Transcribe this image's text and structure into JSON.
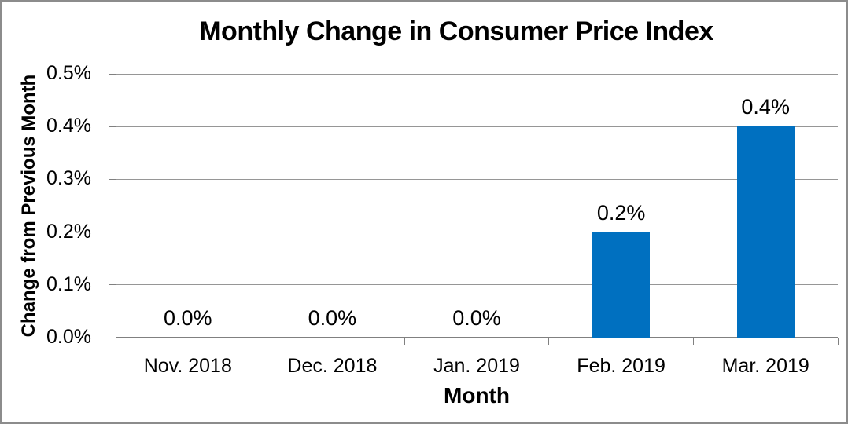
{
  "chart_data": {
    "type": "bar",
    "title": "Monthly Change in Consumer Price Index",
    "xlabel": "Month",
    "ylabel": "Change from Previous Month",
    "categories": [
      "Nov. 2018",
      "Dec. 2018",
      "Jan. 2019",
      "Feb. 2019",
      "Mar. 2019"
    ],
    "values": [
      0.0,
      0.0,
      0.0,
      0.2,
      0.4
    ],
    "data_labels": [
      "0.0%",
      "0.0%",
      "0.0%",
      "0.2%",
      "0.4%"
    ],
    "y_tick_labels": [
      "0.0%",
      "0.1%",
      "0.2%",
      "0.3%",
      "0.4%",
      "0.5%"
    ],
    "ylim": [
      0,
      0.5
    ],
    "grid": true,
    "legend_position": "none",
    "colors": {
      "bar": "#0070c0",
      "gridline": "#969696",
      "axis": "#808080",
      "text": "#000000",
      "background": "#ffffff",
      "frame_border": "#8c8c8c"
    }
  }
}
